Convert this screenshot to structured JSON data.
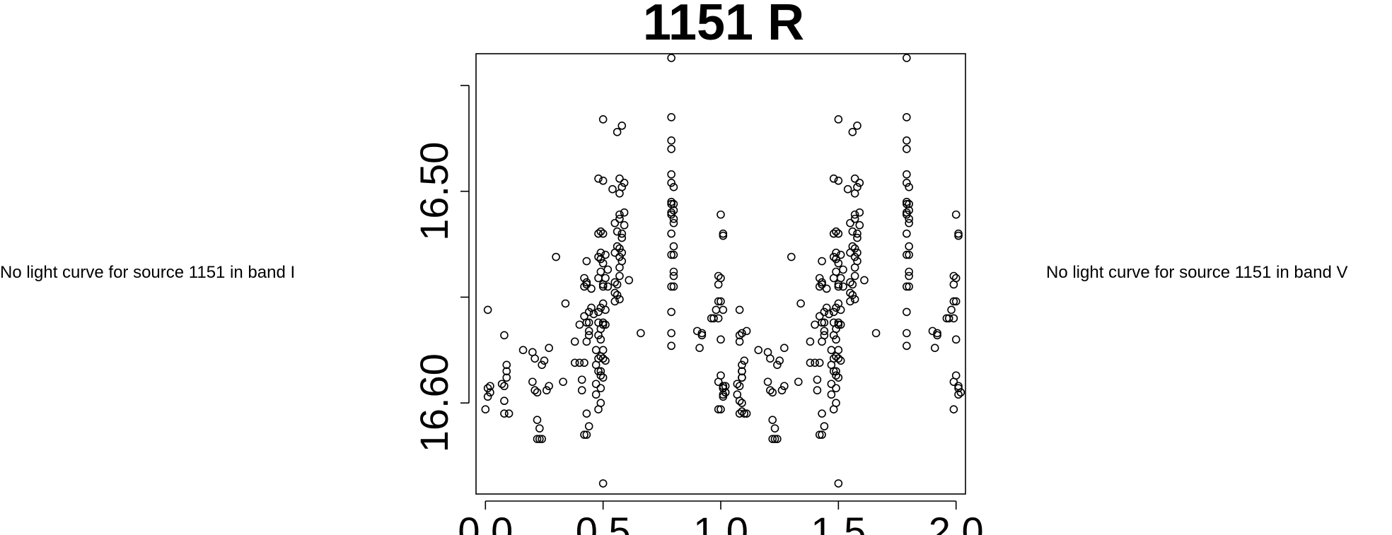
{
  "messages": {
    "left": "No light curve for source 1151 in band I",
    "right": "No light curve for source 1151 in band V"
  },
  "chart_data": {
    "type": "scatter",
    "title": "1151 R",
    "xlabel": "",
    "ylabel": "",
    "xlim": [
      -0.04,
      2.04
    ],
    "ylim": [
      16.643,
      16.435
    ],
    "y_inverted": true,
    "grid": false,
    "xticks": [
      0.0,
      0.5,
      1.0,
      1.5,
      2.0
    ],
    "xtick_labels": [
      "0.0",
      "0.5",
      "1.0",
      "1.5",
      "2.0"
    ],
    "yticks": [
      16.6,
      16.5
    ],
    "ytick_labels": [
      "16.60",
      "16.50"
    ],
    "extra_yticks": [
      16.45,
      16.55
    ],
    "marker": "open-circle",
    "series": [
      {
        "points": [
          [
            0.0,
            16.603
          ],
          [
            0.01,
            16.593
          ],
          [
            0.01,
            16.597
          ],
          [
            0.02,
            16.595
          ],
          [
            0.02,
            16.592
          ],
          [
            0.01,
            16.556
          ],
          [
            0.07,
            16.591
          ],
          [
            0.08,
            16.592
          ],
          [
            0.09,
            16.585
          ],
          [
            0.09,
            16.588
          ],
          [
            0.09,
            16.582
          ],
          [
            0.08,
            16.605
          ],
          [
            0.1,
            16.605
          ],
          [
            0.08,
            16.568
          ],
          [
            0.08,
            16.599
          ],
          [
            0.16,
            16.575
          ],
          [
            0.2,
            16.576
          ],
          [
            0.2,
            16.59
          ],
          [
            0.21,
            16.579
          ],
          [
            0.21,
            16.594
          ],
          [
            0.22,
            16.595
          ],
          [
            0.22,
            16.608
          ],
          [
            0.22,
            16.617
          ],
          [
            0.23,
            16.612
          ],
          [
            0.23,
            16.617
          ],
          [
            0.24,
            16.617
          ],
          [
            0.24,
            16.582
          ],
          [
            0.25,
            16.58
          ],
          [
            0.26,
            16.594
          ],
          [
            0.27,
            16.592
          ],
          [
            0.27,
            16.574
          ],
          [
            0.3,
            16.531
          ],
          [
            0.33,
            16.59
          ],
          [
            0.34,
            16.553
          ],
          [
            0.38,
            16.581
          ],
          [
            0.38,
            16.571
          ],
          [
            0.4,
            16.581
          ],
          [
            0.4,
            16.563
          ],
          [
            0.41,
            16.594
          ],
          [
            0.41,
            16.589
          ],
          [
            0.42,
            16.581
          ],
          [
            0.42,
            16.559
          ],
          [
            0.42,
            16.545
          ],
          [
            0.42,
            16.541
          ],
          [
            0.42,
            16.615
          ],
          [
            0.43,
            16.615
          ],
          [
            0.43,
            16.605
          ],
          [
            0.43,
            16.544
          ],
          [
            0.43,
            16.562
          ],
          [
            0.43,
            16.533
          ],
          [
            0.43,
            16.543
          ],
          [
            0.43,
            16.571
          ],
          [
            0.44,
            16.611
          ],
          [
            0.44,
            16.557
          ],
          [
            0.44,
            16.566
          ],
          [
            0.44,
            16.568
          ],
          [
            0.44,
            16.562
          ],
          [
            0.45,
            16.555
          ],
          [
            0.45,
            16.546
          ],
          [
            0.46,
            16.558
          ],
          [
            0.47,
            16.582
          ],
          [
            0.47,
            16.596
          ],
          [
            0.47,
            16.575
          ],
          [
            0.47,
            16.591
          ],
          [
            0.48,
            16.52
          ],
          [
            0.48,
            16.531
          ],
          [
            0.48,
            16.541
          ],
          [
            0.48,
            16.557
          ],
          [
            0.48,
            16.562
          ],
          [
            0.48,
            16.568
          ],
          [
            0.48,
            16.579
          ],
          [
            0.48,
            16.585
          ],
          [
            0.48,
            16.603
          ],
          [
            0.48,
            16.494
          ],
          [
            0.49,
            16.538
          ],
          [
            0.49,
            16.519
          ],
          [
            0.49,
            16.529
          ],
          [
            0.49,
            16.565
          ],
          [
            0.49,
            16.578
          ],
          [
            0.49,
            16.585
          ],
          [
            0.49,
            16.6
          ],
          [
            0.49,
            16.57
          ],
          [
            0.49,
            16.587
          ],
          [
            0.49,
            16.593
          ],
          [
            0.49,
            16.555
          ],
          [
            0.49,
            16.532
          ],
          [
            0.5,
            16.52
          ],
          [
            0.5,
            16.534
          ],
          [
            0.5,
            16.545
          ],
          [
            0.5,
            16.553
          ],
          [
            0.5,
            16.562
          ],
          [
            0.5,
            16.575
          ],
          [
            0.5,
            16.588
          ],
          [
            0.5,
            16.563
          ],
          [
            0.5,
            16.579
          ],
          [
            0.5,
            16.544
          ],
          [
            0.5,
            16.495
          ],
          [
            0.5,
            16.466
          ],
          [
            0.5,
            16.638
          ],
          [
            0.51,
            16.53
          ],
          [
            0.51,
            16.541
          ],
          [
            0.51,
            16.563
          ],
          [
            0.51,
            16.556
          ],
          [
            0.51,
            16.58
          ],
          [
            0.52,
            16.545
          ],
          [
            0.52,
            16.537
          ],
          [
            0.54,
            16.499
          ],
          [
            0.55,
            16.515
          ],
          [
            0.55,
            16.543
          ],
          [
            0.55,
            16.552
          ],
          [
            0.55,
            16.548
          ],
          [
            0.55,
            16.529
          ],
          [
            0.56,
            16.472
          ],
          [
            0.56,
            16.549
          ],
          [
            0.56,
            16.544
          ],
          [
            0.56,
            16.526
          ],
          [
            0.56,
            16.519
          ],
          [
            0.57,
            16.531
          ],
          [
            0.57,
            16.527
          ],
          [
            0.57,
            16.511
          ],
          [
            0.57,
            16.501
          ],
          [
            0.57,
            16.494
          ],
          [
            0.57,
            16.54
          ],
          [
            0.57,
            16.551
          ],
          [
            0.57,
            16.513
          ],
          [
            0.57,
            16.536
          ],
          [
            0.58,
            16.469
          ],
          [
            0.58,
            16.498
          ],
          [
            0.58,
            16.522
          ],
          [
            0.58,
            16.533
          ],
          [
            0.58,
            16.52
          ],
          [
            0.58,
            16.529
          ],
          [
            0.59,
            16.51
          ],
          [
            0.59,
            16.496
          ],
          [
            0.59,
            16.516
          ],
          [
            0.61,
            16.542
          ],
          [
            0.66,
            16.567
          ],
          [
            0.79,
            16.492
          ],
          [
            0.79,
            16.496
          ],
          [
            0.79,
            16.511
          ],
          [
            0.79,
            16.52
          ],
          [
            0.79,
            16.53
          ],
          [
            0.79,
            16.545
          ],
          [
            0.79,
            16.557
          ],
          [
            0.79,
            16.567
          ],
          [
            0.79,
            16.573
          ],
          [
            0.79,
            16.505
          ],
          [
            0.79,
            16.51
          ],
          [
            0.79,
            16.506
          ],
          [
            0.79,
            16.48
          ],
          [
            0.79,
            16.476
          ],
          [
            0.79,
            16.465
          ],
          [
            0.79,
            16.437
          ],
          [
            0.8,
            16.506
          ],
          [
            0.8,
            16.513
          ],
          [
            0.8,
            16.526
          ],
          [
            0.8,
            16.538
          ],
          [
            0.8,
            16.545
          ],
          [
            0.8,
            16.509
          ],
          [
            0.8,
            16.53
          ],
          [
            0.8,
            16.515
          ],
          [
            0.8,
            16.54
          ],
          [
            0.8,
            16.498
          ],
          [
            0.9,
            16.566
          ],
          [
            0.91,
            16.574
          ],
          [
            0.92,
            16.567
          ],
          [
            0.92,
            16.568
          ],
          [
            0.96,
            16.56
          ],
          [
            0.97,
            16.56
          ],
          [
            0.98,
            16.556
          ],
          [
            0.99,
            16.59
          ],
          [
            0.99,
            16.603
          ],
          [
            0.99,
            16.56
          ],
          [
            0.99,
            16.54
          ],
          [
            0.99,
            16.544
          ],
          [
            0.99,
            16.552
          ],
          [
            1.0,
            16.511
          ],
          [
            1.0,
            16.541
          ],
          [
            1.0,
            16.552
          ],
          [
            1.0,
            16.57
          ],
          [
            1.0,
            16.587
          ],
          [
            1.01,
            16.593
          ],
          [
            1.01,
            16.596
          ],
          [
            1.01,
            16.52
          ],
          [
            1.01,
            16.521
          ],
          [
            1.01,
            16.592
          ],
          [
            1.02,
            16.595
          ],
          [
            1.07,
            16.596
          ],
          [
            1.08,
            16.556
          ],
          [
            1.08,
            16.571
          ],
          [
            1.09,
            16.585
          ],
          [
            1.09,
            16.588
          ],
          [
            1.09,
            16.604
          ],
          [
            1.09,
            16.6
          ],
          [
            1.1,
            16.58
          ],
          [
            1.11,
            16.605
          ],
          [
            1.11,
            16.566
          ],
          [
            1.09,
            16.567
          ]
        ]
      }
    ]
  }
}
